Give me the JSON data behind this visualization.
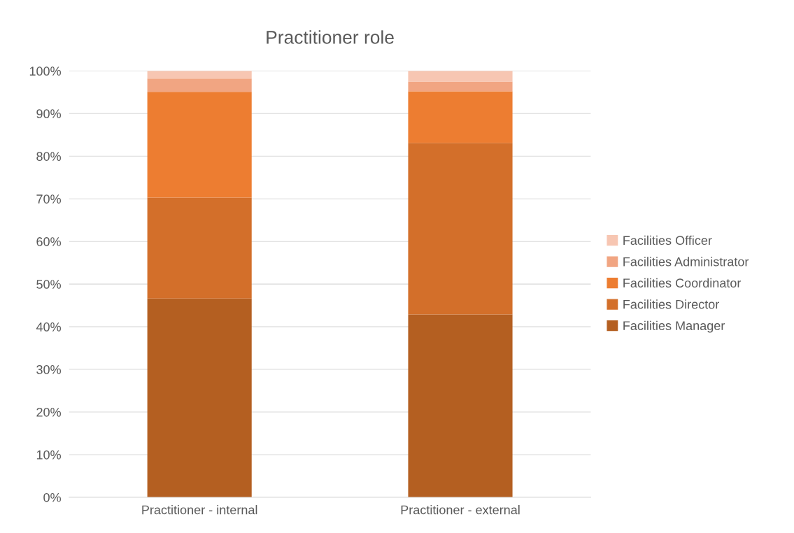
{
  "chart_data": {
    "type": "bar",
    "title": "Practitioner role",
    "stacked": true,
    "categories": [
      "Practitioner - internal",
      "Practitioner - external"
    ],
    "series": [
      {
        "name": "Facilities Manager",
        "color": "#b45f21",
        "values": [
          46.6,
          42.9
        ]
      },
      {
        "name": "Facilities Director",
        "color": "#d36f2a",
        "values": [
          23.7,
          40.2
        ]
      },
      {
        "name": "Facilities Coordinator",
        "color": "#ed7d31",
        "values": [
          24.8,
          12.1
        ]
      },
      {
        "name": "Facilities Administrator",
        "color": "#f1a582",
        "values": [
          3.1,
          2.3
        ]
      },
      {
        "name": "Facilities Officer",
        "color": "#f7c6b2",
        "values": [
          1.8,
          2.5
        ]
      }
    ],
    "ylim": [
      0,
      100
    ],
    "yticks": [
      {
        "value": 0,
        "label": "0%"
      },
      {
        "value": 10,
        "label": "10%"
      },
      {
        "value": 20,
        "label": "20%"
      },
      {
        "value": 30,
        "label": "30%"
      },
      {
        "value": 40,
        "label": "40%"
      },
      {
        "value": 50,
        "label": "50%"
      },
      {
        "value": 60,
        "label": "60%"
      },
      {
        "value": 70,
        "label": "70%"
      },
      {
        "value": 80,
        "label": "80%"
      },
      {
        "value": 90,
        "label": "90%"
      },
      {
        "value": 100,
        "label": "100%"
      }
    ],
    "grid": "y",
    "legend": "right"
  }
}
